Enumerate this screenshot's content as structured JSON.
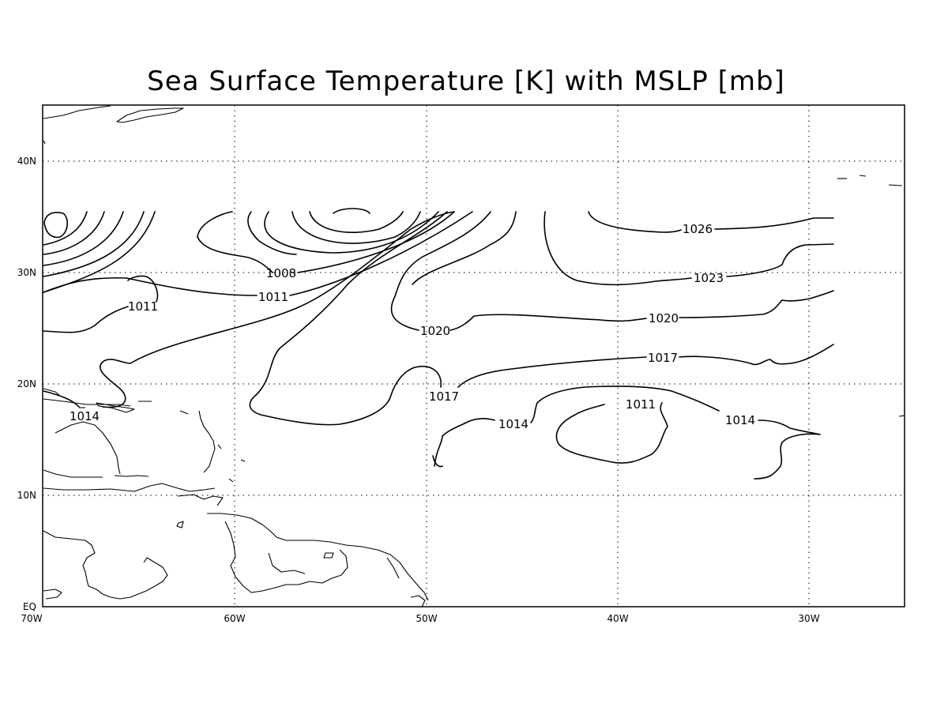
{
  "title": "Sea Surface Temperature [K] with MSLP [mb]",
  "x_ticks": [
    "70W",
    "60W",
    "50W",
    "40W",
    "30W"
  ],
  "y_ticks": [
    "EQ",
    "10N",
    "20N",
    "30N",
    "40N"
  ],
  "contour_labels": [
    {
      "value": "1008"
    },
    {
      "value": "1011"
    },
    {
      "value": "1011"
    },
    {
      "value": "1011"
    },
    {
      "value": "1014"
    },
    {
      "value": "1014"
    },
    {
      "value": "1014"
    },
    {
      "value": "1017"
    },
    {
      "value": "1017"
    },
    {
      "value": "1020"
    },
    {
      "value": "1020"
    },
    {
      "value": "1023"
    },
    {
      "value": "1026"
    }
  ],
  "colors": {
    "line": "#000000",
    "background": "#ffffff"
  }
}
